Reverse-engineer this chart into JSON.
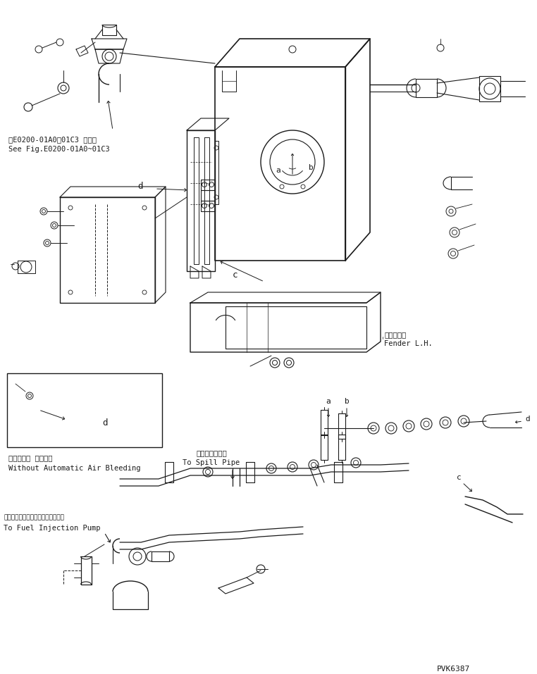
{
  "bg_color": "#ffffff",
  "line_color": "#1a1a1a",
  "fig_width": 7.62,
  "fig_height": 9.57,
  "dpi": 100,
  "part_number": "PVK6387",
  "ref_text_jp": "第E0200-01A0～01C3 図参照",
  "ref_text_en": "See Fig.E0200-01A0~01C3",
  "label_d": "d",
  "label_a": "a",
  "label_b": "b",
  "label_c": "c",
  "fender_jp": "フェンダ左",
  "fender_en": "Fender L.H.",
  "spill_jp": "スビルパイプへ",
  "spill_en": "To Spill Pipe",
  "injection_jp": "フゥエルインジェクションポンプへ",
  "injection_en": "To Fuel Injection Pump",
  "no_bleed_jp": "自動エアー 抜きナシ",
  "no_bleed_en": "Without Automatic Air Bleeding"
}
